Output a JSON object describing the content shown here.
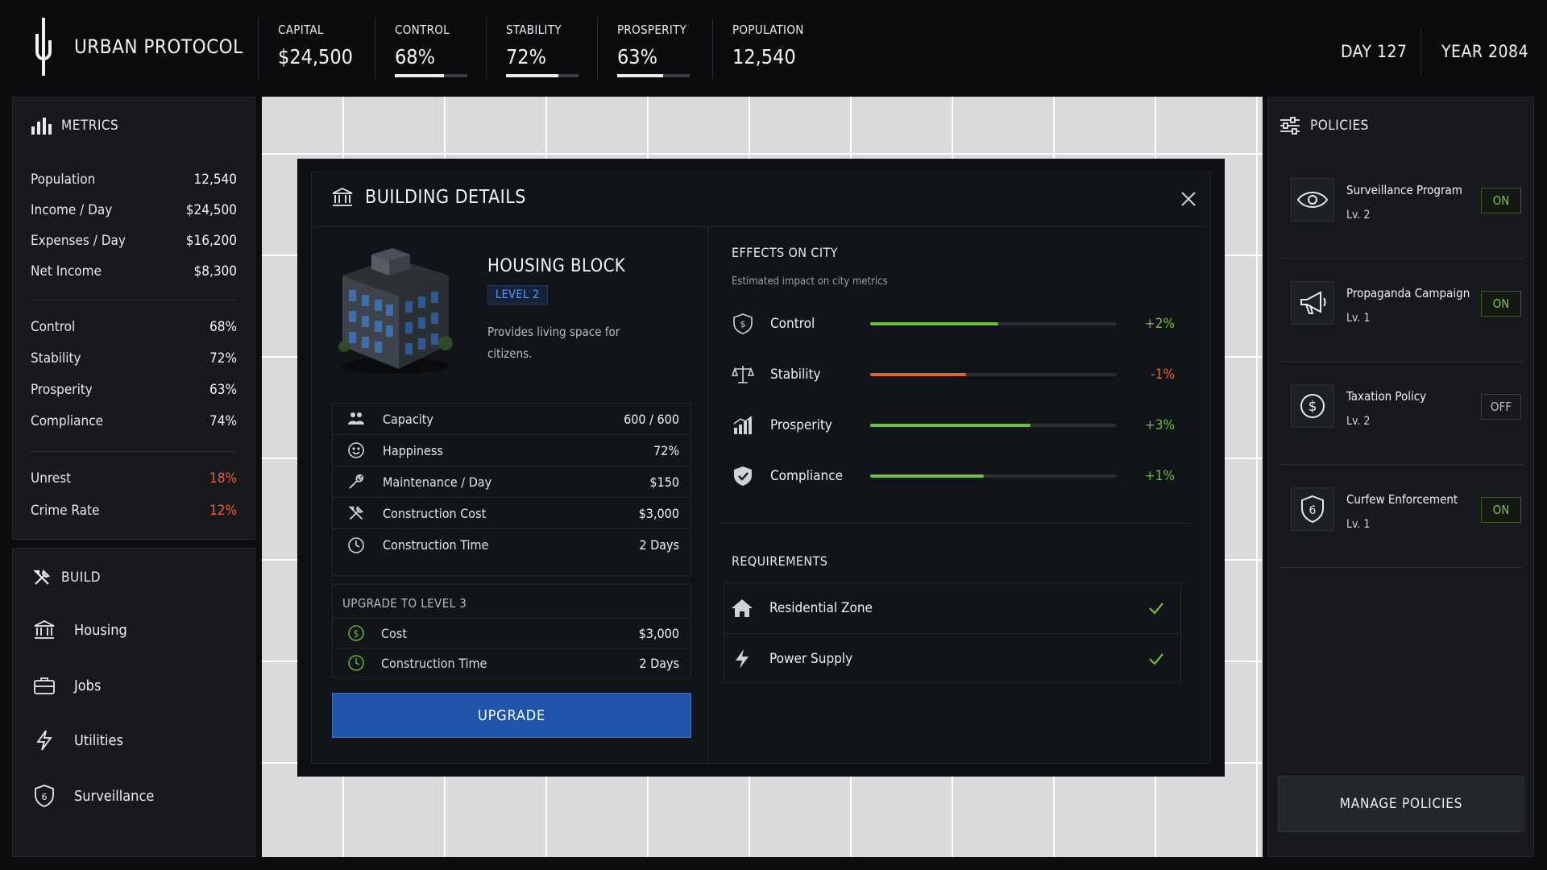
{
  "app": {
    "title": "URBAN PROTOCOL"
  },
  "top_stats": [
    {
      "label": "CAPITAL",
      "value": "$24,500"
    },
    {
      "label": "CONTROL",
      "value": "68%",
      "level": 0.68
    },
    {
      "label": "STABILITY",
      "value": "72%",
      "level": 0.72
    },
    {
      "label": "PROSPERITY",
      "value": "63%",
      "level": 0.63
    },
    {
      "label": "POPULATION",
      "value": "12,540"
    }
  ],
  "date": {
    "day": "DAY 127",
    "year": "YEAR 2084"
  },
  "metrics": {
    "title": "METRICS",
    "group1": [
      {
        "label": "Population",
        "value": "12,540"
      },
      {
        "label": "Income / Day",
        "value": "$24,500"
      },
      {
        "label": "Expenses / Day",
        "value": "$16,200"
      },
      {
        "label": "Net Income",
        "value": "$8,300"
      }
    ],
    "group2": [
      {
        "label": "Control",
        "value": "68%"
      },
      {
        "label": "Stability",
        "value": "72%"
      },
      {
        "label": "Prosperity",
        "value": "63%"
      },
      {
        "label": "Compliance",
        "value": "74%"
      }
    ],
    "group3": [
      {
        "label": "Unrest",
        "value": "18%"
      },
      {
        "label": "Crime Rate",
        "value": "12%"
      }
    ]
  },
  "build": {
    "title": "BUILD",
    "items": [
      {
        "label": "Housing",
        "icon": "bank-icon"
      },
      {
        "label": "Jobs",
        "icon": "briefcase-icon"
      },
      {
        "label": "Utilities",
        "icon": "lightning-icon"
      },
      {
        "label": "Surveillance",
        "icon": "shield-icon"
      }
    ]
  },
  "modal": {
    "title": "BUILDING DETAILS",
    "building": {
      "name": "HOUSING BLOCK",
      "level": "LEVEL 2",
      "description": "Provides living space for citizens."
    },
    "stats": [
      {
        "label": "Capacity",
        "value": "600 / 600",
        "icon": "people-icon"
      },
      {
        "label": "Happiness",
        "value": "72%",
        "icon": "smiley-icon"
      },
      {
        "label": "Maintenance / Day",
        "value": "$150",
        "icon": "wrench-icon"
      },
      {
        "label": "Construction Cost",
        "value": "$3,000",
        "icon": "tools-icon"
      },
      {
        "label": "Construction Time",
        "value": "2 Days",
        "icon": "clock-icon"
      }
    ],
    "upgrade": {
      "title": "UPGRADE TO LEVEL 3",
      "rows": [
        {
          "label": "Cost",
          "value": "$3,000",
          "icon": "coin-icon"
        },
        {
          "label": "Construction Time",
          "value": "2 Days",
          "icon": "clock-icon"
        }
      ],
      "button": "UPGRADE"
    },
    "effects": {
      "title": "EFFECTS ON CITY",
      "subtitle": "Estimated impact on city metrics",
      "rows": [
        {
          "label": "Control",
          "delta": "+2%",
          "level": 0.52,
          "color": "#6fbf3f",
          "icon": "dollar-shield-icon"
        },
        {
          "label": "Stability",
          "delta": "-1%",
          "level": 0.39,
          "color": "#f0602e",
          "icon": "scales-icon"
        },
        {
          "label": "Prosperity",
          "delta": "+3%",
          "level": 0.65,
          "color": "#6fbf3f",
          "icon": "growth-chart-icon"
        },
        {
          "label": "Compliance",
          "delta": "+1%",
          "level": 0.46,
          "color": "#6fbf3f",
          "icon": "check-shield-icon"
        }
      ]
    },
    "requirements": {
      "title": "REQUIREMENTS",
      "rows": [
        {
          "label": "Residential Zone",
          "icon": "house-icon",
          "met": true
        },
        {
          "label": "Power Supply",
          "icon": "lightning-icon",
          "met": true
        }
      ]
    }
  },
  "policies": {
    "title": "POLICIES",
    "items": [
      {
        "name": "Surveillance Program",
        "level": "Lv. 2",
        "state": "ON",
        "icon": "eye-icon"
      },
      {
        "name": "Propaganda Campaign",
        "level": "Lv. 1",
        "state": "ON",
        "icon": "megaphone-icon"
      },
      {
        "name": "Taxation Policy",
        "level": "Lv. 2",
        "state": "OFF",
        "icon": "dollar-circle-icon"
      },
      {
        "name": "Curfew Enforcement",
        "level": "Lv. 1",
        "state": "ON",
        "icon": "shield-six-icon"
      }
    ],
    "manage_button": "MANAGE POLICIES"
  },
  "colors": {
    "accent_blue": "#1f54a8",
    "positive": "#6fbf3f",
    "negative": "#f0602e",
    "toggle_on": "#7bc142"
  }
}
